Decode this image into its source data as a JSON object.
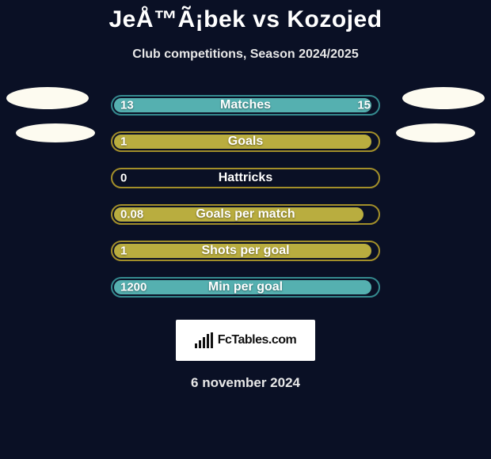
{
  "title": "JeÅ™Ã¡bek vs Kozojed",
  "subtitle": "Club competitions, Season 2024/2025",
  "date": "6 november 2024",
  "fctables_label": "FcTables.com",
  "colors": {
    "background": "#0a1025",
    "text": "#ffffff",
    "subtitle": "#e8e8e8",
    "ellipse": "#fdfbf0"
  },
  "ellipses": [
    {
      "size": "big",
      "side": "left"
    },
    {
      "size": "big",
      "side": "right"
    },
    {
      "size": "small",
      "side": "left"
    },
    {
      "size": "small",
      "side": "right"
    }
  ],
  "fctables_bars_heights": [
    6,
    10,
    14,
    18,
    20
  ],
  "stats": [
    {
      "label": "Matches",
      "left_value": "13",
      "right_value": "15",
      "border_color": "#358a8f",
      "fill_color": "#55b0b0",
      "fill_width_pct": 98
    },
    {
      "label": "Goals",
      "left_value": "1",
      "right_value": "",
      "border_color": "#a38f2a",
      "fill_color": "#b9ad3f",
      "fill_width_pct": 98
    },
    {
      "label": "Hattricks",
      "left_value": "0",
      "right_value": "",
      "border_color": "#a38f2a",
      "fill_color": "#b9ad3f",
      "fill_width_pct": 0
    },
    {
      "label": "Goals per match",
      "left_value": "0.08",
      "right_value": "",
      "border_color": "#a38f2a",
      "fill_color": "#b9ad3f",
      "fill_width_pct": 95
    },
    {
      "label": "Shots per goal",
      "left_value": "1",
      "right_value": "",
      "border_color": "#a38f2a",
      "fill_color": "#b9ad3f",
      "fill_width_pct": 98
    },
    {
      "label": "Min per goal",
      "left_value": "1200",
      "right_value": "",
      "border_color": "#358a8f",
      "fill_color": "#55b0b0",
      "fill_width_pct": 98
    }
  ]
}
